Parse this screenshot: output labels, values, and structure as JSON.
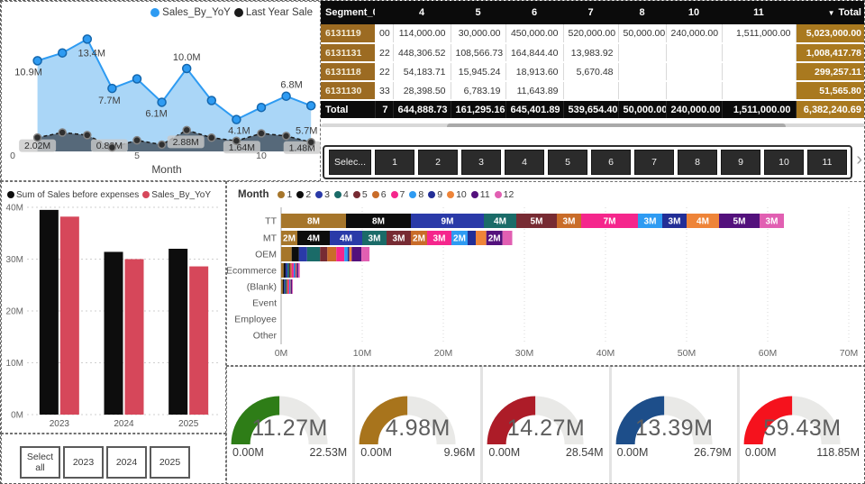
{
  "table": {
    "header": [
      "Segment_0",
      "",
      "4",
      "5",
      "6",
      "7",
      "8",
      "10",
      "11",
      "Total"
    ],
    "sort_icon": "▼",
    "rows": [
      {
        "segment": "6131119",
        "partial": "00",
        "cells": [
          "114,000.00",
          "30,000.00",
          "450,000.00",
          "520,000.00",
          "50,000.00",
          "240,000.00",
          "1,511,000.00"
        ],
        "total": "5,023,000.00"
      },
      {
        "segment": "6131131",
        "partial": "22",
        "cells": [
          "448,306.52",
          "108,566.73",
          "164,844.40",
          "13,983.92",
          "",
          "",
          ""
        ],
        "total": "1,008,417.78"
      },
      {
        "segment": "6131118",
        "partial": "22",
        "cells": [
          "54,183.71",
          "15,945.24",
          "18,913.60",
          "5,670.48",
          "",
          "",
          ""
        ],
        "total": "299,257.11"
      },
      {
        "segment": "6131130",
        "partial": "33",
        "cells": [
          "28,398.50",
          "6,783.19",
          "11,643.89",
          "",
          "",
          "",
          ""
        ],
        "total": "51,565.80"
      }
    ],
    "total_row": {
      "label": "Total",
      "partial": "7",
      "cells": [
        "644,888.73",
        "161,295.16",
        "645,401.89",
        "539,654.40",
        "50,000.00",
        "240,000.00",
        "1,511,000.00"
      ],
      "total": "6,382,240.69"
    }
  },
  "pager": {
    "buttons": [
      "Selec...",
      "1",
      "2",
      "3",
      "4",
      "5",
      "6",
      "7",
      "8",
      "9",
      "10",
      "11"
    ],
    "next_icon": "›"
  },
  "year_slicer": {
    "buttons": [
      "Select all",
      "2023",
      "2024",
      "2025"
    ]
  },
  "chart_data": [
    {
      "id": "sales_by_yoy_line",
      "type": "line",
      "x_title": "Month",
      "x_ticks": [
        {
          "v": 0,
          "label": "0"
        },
        {
          "v": 5,
          "label": "5"
        },
        {
          "v": 10,
          "label": "10"
        }
      ],
      "months": [
        1,
        2,
        3,
        4,
        5,
        6,
        7,
        8,
        9,
        10,
        11,
        12
      ],
      "series": [
        {
          "name": "Sales_By_YoY",
          "color": "#2E9BF2",
          "area": "#AAD6F7",
          "values": [
            10.9,
            11.8,
            13.4,
            7.7,
            8.8,
            6.1,
            10.0,
            6.3,
            4.1,
            5.5,
            6.8,
            5.7
          ],
          "labels": [
            {
              "m": 1,
              "text": "10.9M",
              "dx": -10,
              "dy": 16
            },
            {
              "m": 3,
              "text": "13.4M",
              "dx": 5,
              "dy": 19
            },
            {
              "m": 4,
              "text": "7.7M",
              "dx": -3,
              "dy": 17
            },
            {
              "m": 6,
              "text": "6.1M",
              "dx": -6,
              "dy": 16
            },
            {
              "m": 7,
              "text": "10.0M",
              "dx": 0,
              "dy": -9
            },
            {
              "m": 9,
              "text": "4.1M",
              "dx": 3,
              "dy": 16
            },
            {
              "m": 11,
              "text": "6.8M",
              "dx": 6,
              "dy": -9
            },
            {
              "m": 12,
              "text": "5.7M",
              "dx": -5,
              "dy": 31
            }
          ]
        },
        {
          "name": "Last Year Sale",
          "color": "#1A1A1A",
          "area": "rgba(72,86,100,0.85)",
          "pill": true,
          "values": [
            2.02,
            2.6,
            2.3,
            0.88,
            1.7,
            1.2,
            2.88,
            2.0,
            1.64,
            2.5,
            2.2,
            1.48
          ],
          "labels": [
            {
              "m": 1,
              "text": "2.02M",
              "dx": 0,
              "dy": 4
            },
            {
              "m": 4,
              "text": "0.88M",
              "dx": -3,
              "dy": -7
            },
            {
              "m": 7,
              "text": "2.88M",
              "dx": -1,
              "dy": 8
            },
            {
              "m": 9,
              "text": "1.64M",
              "dx": 6,
              "dy": 2
            },
            {
              "m": 12,
              "text": "1.48M",
              "dx": -10,
              "dy": 1
            }
          ]
        }
      ]
    },
    {
      "id": "yearly_sales_bar",
      "type": "bar",
      "categories": [
        "2023",
        "2024",
        "2025"
      ],
      "ylim": [
        0,
        40
      ],
      "y_ticks": [
        {
          "v": 0,
          "label": "0M"
        },
        {
          "v": 10,
          "label": "10M"
        },
        {
          "v": 20,
          "label": "20M"
        },
        {
          "v": 30,
          "label": "30M"
        },
        {
          "v": 40,
          "label": "40M"
        }
      ],
      "series": [
        {
          "name": "Sum of Sales before expenses",
          "color": "#0D0D0D",
          "values": [
            39.5,
            31.4,
            32.0
          ]
        },
        {
          "name": "Sales_By_YoY",
          "color": "#D6475A",
          "values": [
            38.2,
            30.0,
            28.6
          ]
        }
      ]
    },
    {
      "id": "channel_month_stacked",
      "type": "stacked-bar-horizontal",
      "legend_title": "Month",
      "months": [
        {
          "label": "1",
          "color": "#A6762B"
        },
        {
          "label": "2",
          "color": "#0D0D0D"
        },
        {
          "label": "3",
          "color": "#2A3AA8"
        },
        {
          "label": "4",
          "color": "#1A6B68"
        },
        {
          "label": "5",
          "color": "#772B33"
        },
        {
          "label": "6",
          "color": "#C96C29"
        },
        {
          "label": "7",
          "color": "#F5268C"
        },
        {
          "label": "8",
          "color": "#2E9BF2"
        },
        {
          "label": "9",
          "color": "#222E96"
        },
        {
          "label": "10",
          "color": "#EE8438"
        },
        {
          "label": "11",
          "color": "#53117C"
        },
        {
          "label": "12",
          "color": "#E15FB2"
        }
      ],
      "categories": [
        "TT",
        "MT",
        "OEM",
        "Ecommerce",
        "(Blank)",
        "Event",
        "Employee",
        "Other"
      ],
      "xlim": [
        0,
        70
      ],
      "x_ticks": [
        {
          "v": 0,
          "label": "0M"
        },
        {
          "v": 10,
          "label": "10M"
        },
        {
          "v": 20,
          "label": "20M"
        },
        {
          "v": 30,
          "label": "30M"
        },
        {
          "v": 40,
          "label": "40M"
        },
        {
          "v": 50,
          "label": "50M"
        },
        {
          "v": 60,
          "label": "60M"
        },
        {
          "v": 70,
          "label": "70M"
        }
      ],
      "rows": [
        {
          "values": [
            8,
            8,
            9,
            4,
            5,
            3,
            7,
            3,
            3,
            4,
            5,
            3
          ],
          "labels": [
            "8M",
            "8M",
            "9M",
            "4M",
            "5M",
            "3M",
            "7M",
            "3M",
            "3M",
            "4M",
            "5M",
            "3M"
          ]
        },
        {
          "values": [
            2,
            4,
            4,
            3,
            3,
            2,
            3,
            2,
            1,
            1.3,
            2,
            1.2
          ],
          "labels": [
            "2M",
            "4M",
            "4M",
            "3M",
            "3M",
            "2M",
            "3M",
            "2M",
            "",
            "",
            "2M",
            ""
          ]
        },
        {
          "values": [
            1.3,
            0.9,
            1,
            1.6,
            0.9,
            1.1,
            1,
            0.4,
            0.2,
            0.3,
            1.2,
            1
          ],
          "labels": []
        },
        {
          "values": [
            0.3,
            0.25,
            0.25,
            0.2,
            0.15,
            0.15,
            0.25,
            0.15,
            0.1,
            0.1,
            0.2,
            0.2
          ],
          "labels": []
        },
        {
          "values": [
            0.2,
            0.15,
            0.15,
            0.15,
            0.1,
            0.1,
            0.15,
            0.1,
            0.05,
            0.05,
            0.15,
            0.1
          ],
          "labels": []
        },
        {
          "values": [],
          "labels": []
        },
        {
          "values": [],
          "labels": []
        },
        {
          "values": [],
          "labels": []
        }
      ]
    },
    {
      "id": "gauges",
      "type": "gauge",
      "items": [
        {
          "value": "11.27M",
          "min": "0.00M",
          "max": "22.53M",
          "color": "#2E7D17",
          "pct": 0.5
        },
        {
          "value": "4.98M",
          "min": "0.00M",
          "max": "9.96M",
          "color": "#A8741C",
          "pct": 0.5
        },
        {
          "value": "14.27M",
          "min": "0.00M",
          "max": "28.54M",
          "color": "#AD1C28",
          "pct": 0.5
        },
        {
          "value": "13.39M",
          "min": "0.00M",
          "max": "26.79M",
          "color": "#1D4E8A",
          "pct": 0.5
        },
        {
          "value": "59.43M",
          "min": "0.00M",
          "max": "118.85M",
          "color": "#F5121D",
          "pct": 0.5
        }
      ]
    }
  ]
}
